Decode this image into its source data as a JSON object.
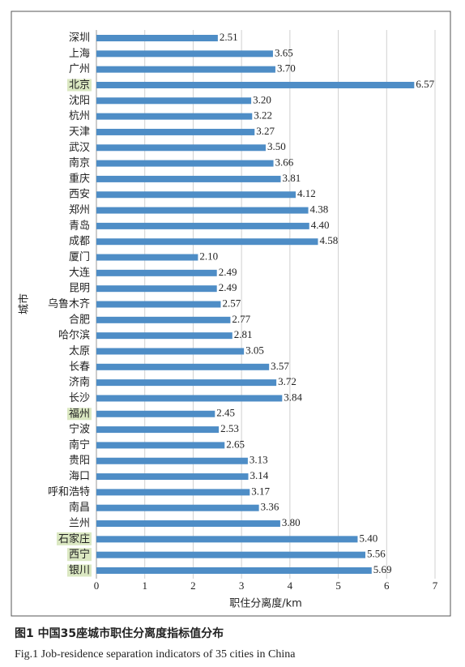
{
  "chart_data": {
    "type": "hbar",
    "y_label": "城市",
    "x_label": "职住分离度/km",
    "categories": [
      "深圳",
      "上海",
      "广州",
      "北京",
      "沈阳",
      "杭州",
      "天津",
      "武汉",
      "南京",
      "重庆",
      "西安",
      "郑州",
      "青岛",
      "成都",
      "厦门",
      "大连",
      "昆明",
      "乌鲁木齐",
      "合肥",
      "哈尔滨",
      "太原",
      "长春",
      "济南",
      "长沙",
      "福州",
      "宁波",
      "南宁",
      "贵阳",
      "海口",
      "呼和浩特",
      "南昌",
      "兰州",
      "石家庄",
      "西宁",
      "银川"
    ],
    "values": [
      2.51,
      3.65,
      3.7,
      6.57,
      3.2,
      3.22,
      3.27,
      3.5,
      3.66,
      3.81,
      4.12,
      4.38,
      4.4,
      4.58,
      2.1,
      2.49,
      2.49,
      2.57,
      2.77,
      2.81,
      3.05,
      3.57,
      3.72,
      3.84,
      2.45,
      2.53,
      2.65,
      3.13,
      3.14,
      3.17,
      3.36,
      3.8,
      5.4,
      5.56,
      5.69
    ],
    "value_labels": [
      "2.51",
      "3.65",
      "3.70",
      "6.57",
      "3.20",
      "3.22",
      "3.27",
      "3.50",
      "3.66",
      "3.81",
      "4.12",
      "4.38",
      "4.40",
      "4.58",
      "2.10",
      "2.49",
      "2.49",
      "2.57",
      "2.77",
      "2.81",
      "3.05",
      "3.57",
      "3.72",
      "3.84",
      "2.45",
      "2.53",
      "2.65",
      "3.13",
      "3.14",
      "3.17",
      "3.36",
      "3.80",
      "5.40",
      "5.56",
      "5.69"
    ],
    "highlight": [
      3,
      24,
      32,
      33,
      34
    ],
    "color": "#4e8dc6",
    "highlight_color": "#dbe8c2",
    "xlim": [
      0,
      7
    ],
    "xticks": [
      0,
      1,
      2,
      3,
      4,
      5,
      6,
      7
    ],
    "grid": true
  },
  "captions": {
    "cn": "图1 中国35座城市职住分离度指标值分布",
    "en": "Fig.1 Job-residence separation indicators of 35 cities in China"
  }
}
